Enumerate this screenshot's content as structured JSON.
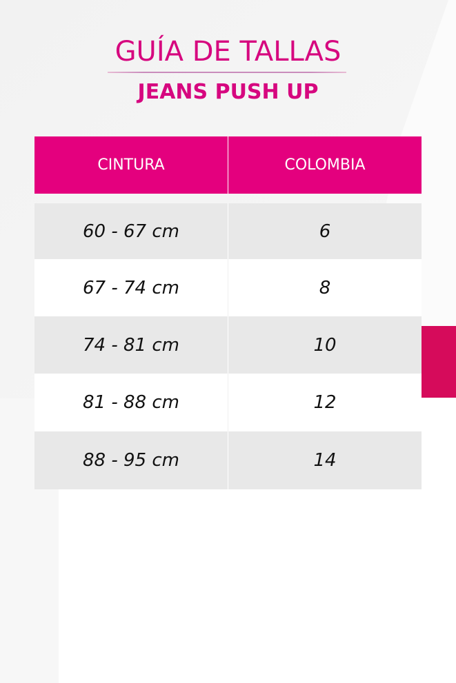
{
  "header": {
    "title": "GUÍA DE TALLAS",
    "subtitle": "JEANS PUSH UP"
  },
  "colors": {
    "brand": "#e4007e",
    "title": "#d6077f",
    "accent": "#d60b5b",
    "row_alt": "#e8e8e8"
  },
  "table": {
    "columns": [
      "CINTURA",
      "COLOMBIA"
    ],
    "rows": [
      {
        "cintura": "60 - 67 cm",
        "colombia": "6"
      },
      {
        "cintura": "67 - 74 cm",
        "colombia": "8"
      },
      {
        "cintura": "74 - 81 cm",
        "colombia": "10"
      },
      {
        "cintura": "81 - 88 cm",
        "colombia": "12"
      },
      {
        "cintura": "88 - 95 cm",
        "colombia": "14"
      }
    ]
  }
}
